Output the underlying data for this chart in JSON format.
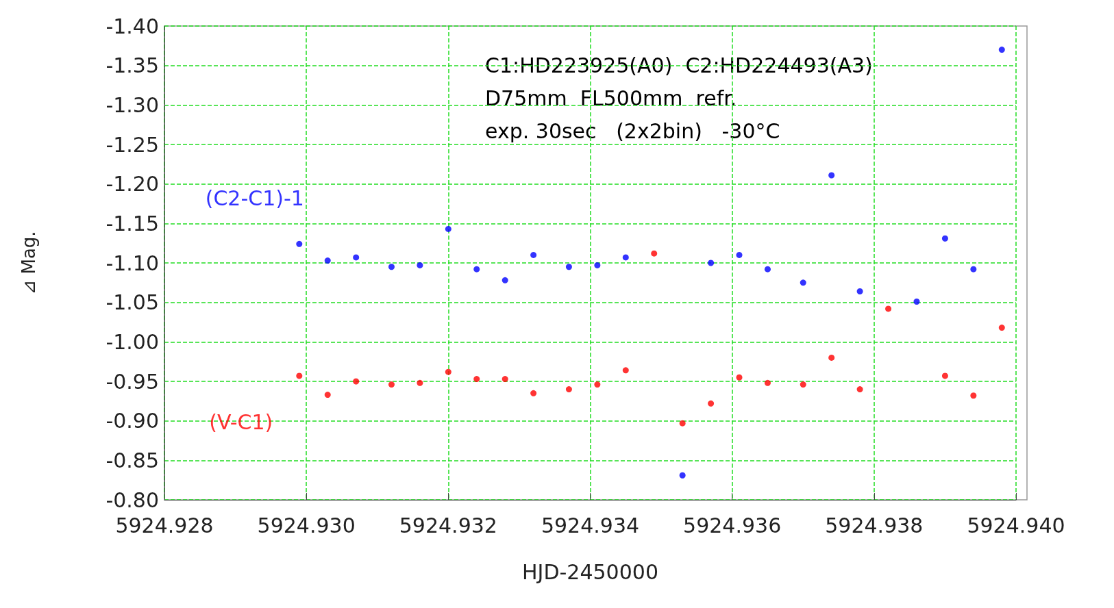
{
  "chart_data": {
    "type": "scatter",
    "xlabel": "HJD-2450000",
    "ylabel": "⊿ Mag.",
    "x": [
      5924.9299,
      5924.9303,
      5924.9307,
      5924.9312,
      5924.9316,
      5924.932,
      5924.9324,
      5924.9328,
      5924.9332,
      5924.9337,
      5924.9341,
      5924.9345,
      5924.9349,
      5924.9353,
      5924.9357,
      5924.9361,
      5924.9365,
      5924.937,
      5924.9374,
      5924.9378,
      5924.9382,
      5924.9386,
      5924.939,
      5924.9394,
      5924.9398
    ],
    "series": [
      {
        "name": "(C2-C1)-1",
        "color": "#0000ff",
        "values": [
          -1.124,
          -1.103,
          -1.107,
          -1.095,
          -1.097,
          -1.143,
          -1.092,
          -1.078,
          -1.11,
          -1.095,
          -1.097,
          -1.107,
          null,
          -0.831,
          -1.1,
          -1.11,
          -1.092,
          -1.075,
          -1.211,
          -1.064,
          null,
          -1.051,
          -1.131,
          -1.092,
          -1.37
        ]
      },
      {
        "name": "(V-C1)",
        "color": "#ff0000",
        "values": [
          -0.957,
          -0.933,
          -0.95,
          -0.946,
          -0.948,
          -0.962,
          -0.953,
          -0.953,
          -0.935,
          -0.94,
          -0.946,
          -0.964,
          -1.112,
          -0.897,
          -0.922,
          -0.955,
          -0.948,
          -0.946,
          -0.98,
          -0.94,
          -1.042,
          null,
          -0.957,
          -0.932,
          -1.018
        ]
      }
    ],
    "xlim": [
      5924.928,
      5924.94
    ],
    "xticks": [
      {
        "value": 5924.928,
        "label": "5924.928"
      },
      {
        "value": 5924.93,
        "label": "5924.930"
      },
      {
        "value": 5924.932,
        "label": "5924.932"
      },
      {
        "value": 5924.934,
        "label": "5924.934"
      },
      {
        "value": 5924.936,
        "label": "5924.936"
      },
      {
        "value": 5924.938,
        "label": "5924.938"
      },
      {
        "value": 5924.94,
        "label": "5924.940"
      }
    ],
    "ylim": [
      -0.8,
      -1.4
    ],
    "yticks": [
      {
        "value": -0.8,
        "label": "-0.80"
      },
      {
        "value": -0.85,
        "label": "-0.85"
      },
      {
        "value": -0.9,
        "label": "-0.90"
      },
      {
        "value": -0.95,
        "label": "-0.95"
      },
      {
        "value": -1.0,
        "label": "-1.00"
      },
      {
        "value": -1.05,
        "label": "-1.05"
      },
      {
        "value": -1.1,
        "label": "-1.10"
      },
      {
        "value": -1.15,
        "label": "-1.15"
      },
      {
        "value": -1.2,
        "label": "-1.20"
      },
      {
        "value": -1.25,
        "label": "-1.25"
      },
      {
        "value": -1.3,
        "label": "-1.30"
      },
      {
        "value": -1.35,
        "label": "-1.35"
      },
      {
        "value": -1.4,
        "label": "-1.40"
      }
    ],
    "grid": true,
    "legend": false,
    "marker": "circle",
    "annotations": [
      "C1:HD223925(A0)  C2:HD224493(A3)",
      "D75mm  FL500mm  refr.",
      "exp. 30sec   (2x2bin)   -30°C"
    ]
  }
}
